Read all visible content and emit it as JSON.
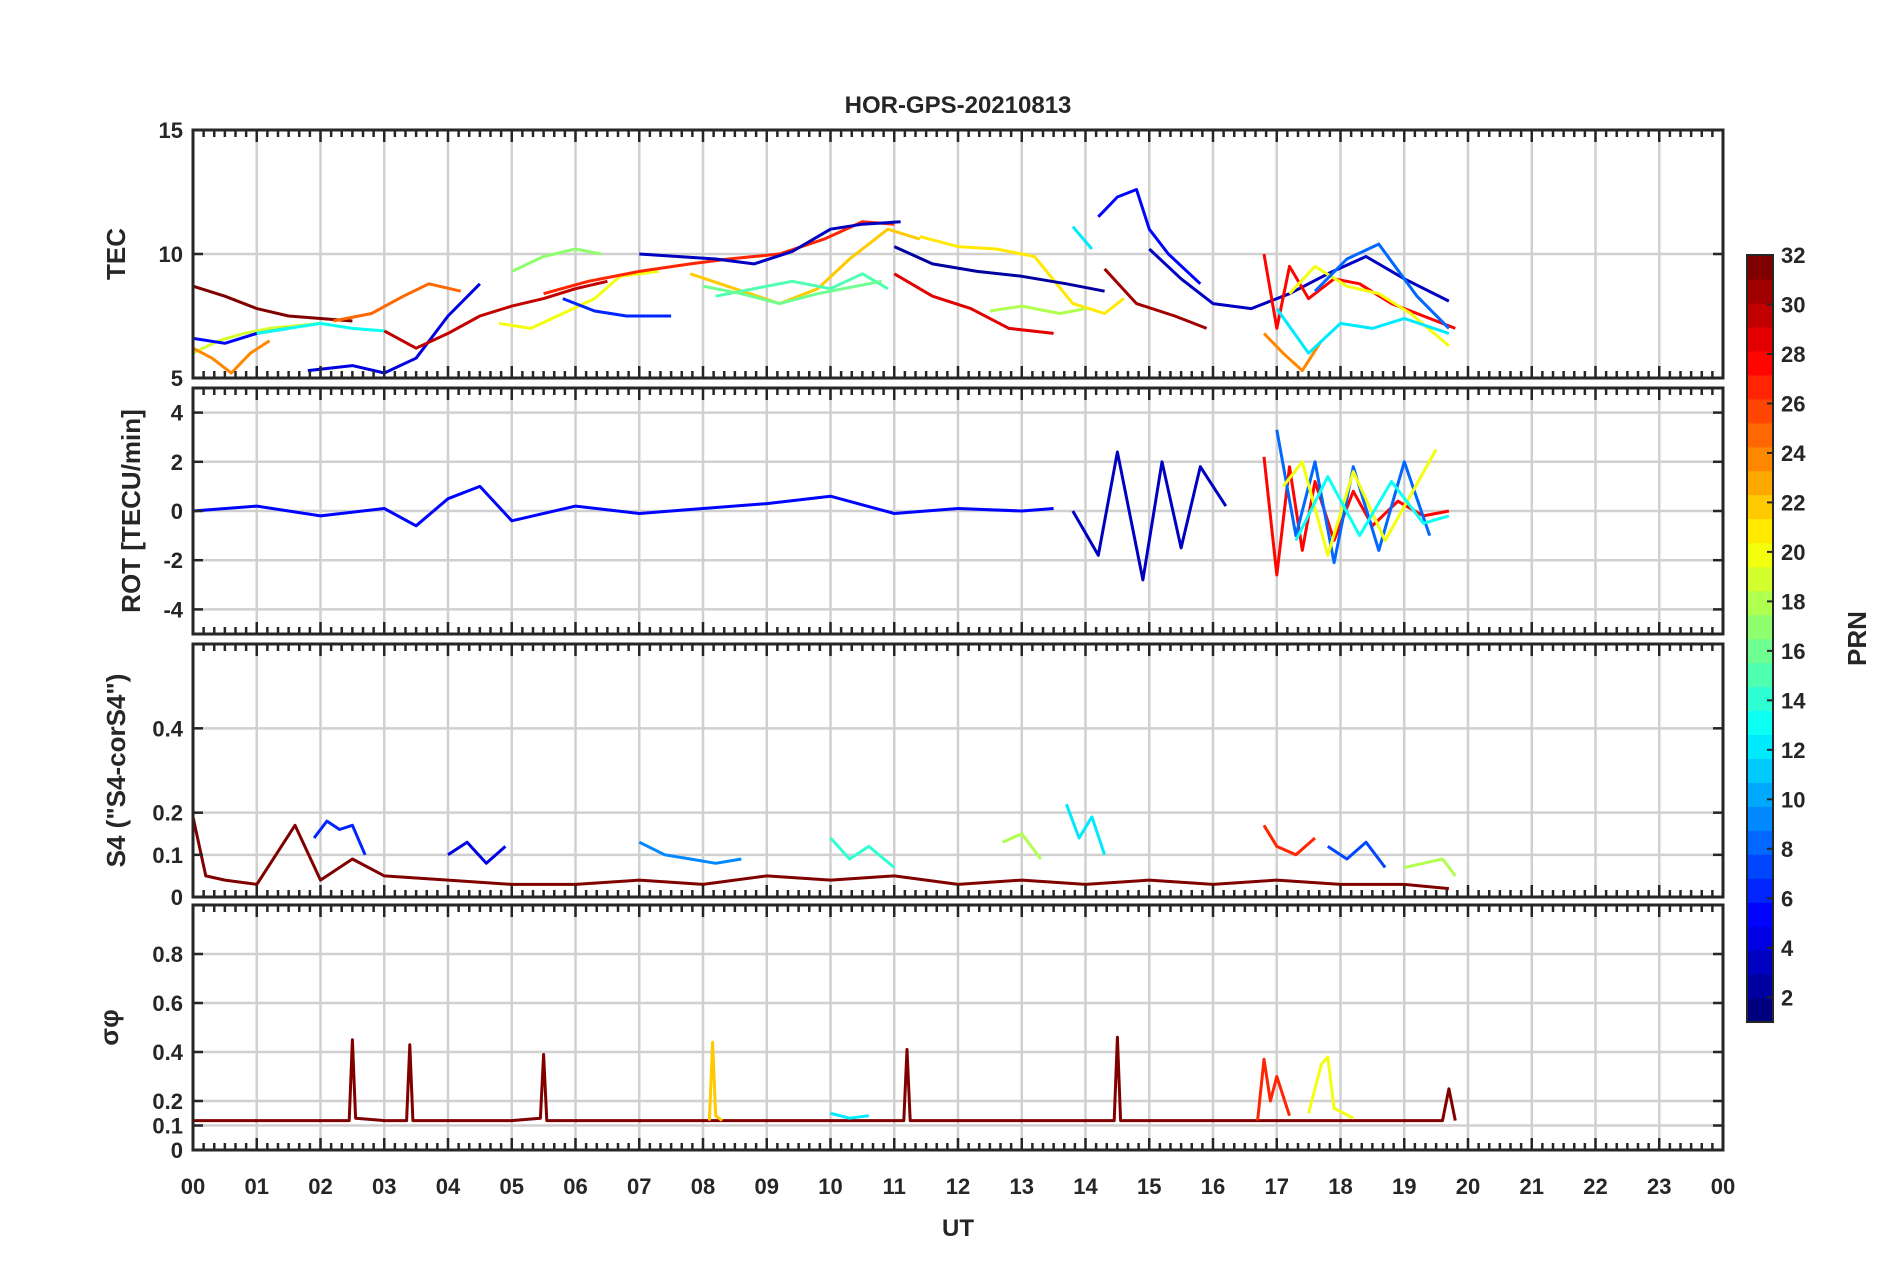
{
  "figure": {
    "title": "HOR-GPS-20210813",
    "xlabel": "UT",
    "x_ticks": [
      "00",
      "01",
      "02",
      "03",
      "04",
      "05",
      "06",
      "07",
      "08",
      "09",
      "10",
      "11",
      "12",
      "13",
      "14",
      "15",
      "16",
      "17",
      "18",
      "19",
      "20",
      "21",
      "22",
      "23",
      "00"
    ],
    "colorbar": {
      "label": "PRN",
      "ticks": [
        "2",
        "4",
        "6",
        "8",
        "10",
        "12",
        "14",
        "16",
        "18",
        "20",
        "22",
        "24",
        "26",
        "28",
        "30",
        "32"
      ],
      "range": [
        1,
        32
      ],
      "colormap": "jet"
    }
  },
  "chart_data": [
    {
      "type": "line",
      "name": "TEC panel",
      "ylabel": "TEC",
      "ylim": [
        5,
        15
      ],
      "yticks": [
        5,
        10,
        15
      ],
      "xlim": [
        0,
        24
      ],
      "grid": true,
      "series": [
        {
          "prn": 32,
          "x": [
            0,
            0.5,
            1,
            1.5,
            2,
            2.5
          ],
          "y": [
            8.7,
            8.3,
            7.8,
            7.5,
            7.4,
            7.3
          ]
        },
        {
          "prn": 19,
          "x": [
            0,
            0.4,
            0.8,
            1.2,
            1.6,
            2.0
          ],
          "y": [
            6.0,
            6.5,
            6.8,
            7.0,
            7.1,
            7.2
          ]
        },
        {
          "prn": 24,
          "x": [
            0,
            0.3,
            0.6,
            0.9,
            1.2
          ],
          "y": [
            6.2,
            5.8,
            5.2,
            6.0,
            6.5
          ]
        },
        {
          "prn": 5,
          "x": [
            0,
            0.5,
            1.0,
            1.5
          ],
          "y": [
            6.6,
            6.4,
            6.8,
            7.0
          ]
        },
        {
          "prn": 13,
          "x": [
            1.0,
            1.5,
            2.0,
            2.5,
            3.0
          ],
          "y": [
            6.8,
            7.0,
            7.2,
            7.0,
            6.9
          ]
        },
        {
          "prn": 4,
          "x": [
            1.8,
            2.5,
            3.0,
            3.5,
            4.0,
            4.5
          ],
          "y": [
            5.3,
            5.5,
            5.2,
            5.8,
            7.5,
            8.8
          ]
        },
        {
          "prn": 30,
          "x": [
            3.0,
            3.5,
            4.0,
            4.5,
            5.0,
            5.5,
            6.0,
            6.5
          ],
          "y": [
            6.9,
            6.2,
            6.8,
            7.5,
            7.9,
            8.2,
            8.6,
            8.9
          ]
        },
        {
          "prn": 25,
          "x": [
            2.2,
            2.8,
            3.3,
            3.7,
            4.2
          ],
          "y": [
            7.3,
            7.6,
            8.3,
            8.8,
            8.5
          ]
        },
        {
          "prn": 20,
          "x": [
            4.8,
            5.3,
            5.8,
            6.3,
            6.7,
            7.3
          ],
          "y": [
            7.2,
            7.0,
            7.6,
            8.2,
            9.1,
            9.3
          ]
        },
        {
          "prn": 17,
          "x": [
            5.0,
            5.5,
            6.0,
            6.4
          ],
          "y": [
            9.3,
            9.9,
            10.2,
            10.0
          ]
        },
        {
          "prn": 6,
          "x": [
            5.8,
            6.3,
            6.8,
            7.5
          ],
          "y": [
            8.2,
            7.7,
            7.5,
            7.5
          ]
        },
        {
          "prn": 27,
          "x": [
            5.5,
            6.2,
            7.0,
            7.8,
            8.4,
            9.2,
            9.9,
            10.5,
            11.0
          ],
          "y": [
            8.4,
            8.9,
            9.3,
            9.6,
            9.8,
            10.0,
            10.6,
            11.3,
            11.2
          ]
        },
        {
          "prn": 3,
          "x": [
            7.0,
            7.6,
            8.2,
            8.8,
            9.4,
            10.0,
            10.5,
            11.1
          ],
          "y": [
            10.0,
            9.9,
            9.8,
            9.6,
            10.1,
            11.0,
            11.2,
            11.3
          ]
        },
        {
          "prn": 22,
          "x": [
            7.8,
            8.5,
            9.2,
            9.8,
            10.3,
            10.9,
            11.4
          ],
          "y": [
            9.2,
            8.6,
            8.0,
            8.6,
            9.8,
            11.0,
            10.6
          ]
        },
        {
          "prn": 15,
          "x": [
            8.2,
            8.8,
            9.4,
            10.0,
            10.5,
            10.9
          ],
          "y": [
            8.3,
            8.6,
            8.9,
            8.6,
            9.2,
            8.6
          ]
        },
        {
          "prn": 16,
          "x": [
            8.0,
            8.6,
            9.2,
            9.8,
            10.2,
            10.8
          ],
          "y": [
            8.7,
            8.4,
            8.0,
            8.4,
            8.6,
            8.9
          ]
        },
        {
          "prn": 29,
          "x": [
            11.0,
            11.6,
            12.2,
            12.8,
            13.5
          ],
          "y": [
            9.2,
            8.3,
            7.8,
            7.0,
            6.8
          ]
        },
        {
          "prn": 21,
          "x": [
            11.4,
            12.0,
            12.6,
            13.2,
            13.8,
            14.3,
            14.6
          ],
          "y": [
            10.7,
            10.3,
            10.2,
            9.9,
            8.0,
            7.6,
            8.2
          ]
        },
        {
          "prn": 2,
          "x": [
            11.0,
            11.6,
            12.3,
            13.0,
            13.7,
            14.3
          ],
          "y": [
            10.3,
            9.6,
            9.3,
            9.1,
            8.8,
            8.5
          ]
        },
        {
          "prn": 18,
          "x": [
            12.5,
            13.0,
            13.6,
            14.0
          ],
          "y": [
            7.7,
            7.9,
            7.6,
            7.8
          ]
        },
        {
          "prn": 12,
          "x": [
            13.8,
            14.1
          ],
          "y": [
            11.1,
            10.2
          ]
        },
        {
          "prn": 5,
          "x": [
            14.2,
            14.5,
            14.8,
            15.0,
            15.3,
            15.8
          ],
          "y": [
            11.5,
            12.3,
            12.6,
            11.0,
            10.0,
            8.8
          ]
        },
        {
          "prn": 31,
          "x": [
            14.3,
            14.8,
            15.4,
            15.9
          ],
          "y": [
            9.4,
            8.0,
            7.5,
            7.0
          ]
        },
        {
          "prn": 3,
          "x": [
            15.0,
            15.5,
            16.0,
            16.6,
            17.2,
            17.8,
            18.4,
            19.0,
            19.7
          ],
          "y": [
            10.2,
            9.0,
            8.0,
            7.8,
            8.4,
            9.2,
            9.9,
            9.0,
            8.1
          ]
        },
        {
          "prn": 28,
          "x": [
            16.8,
            17.0,
            17.2,
            17.5,
            17.9,
            18.3,
            18.8,
            19.3,
            19.8
          ],
          "y": [
            10.0,
            7.0,
            9.5,
            8.2,
            9.0,
            8.8,
            8.0,
            7.5,
            7.0
          ]
        },
        {
          "prn": 24,
          "x": [
            16.8,
            17.1,
            17.4,
            17.7
          ],
          "y": [
            6.8,
            6.0,
            5.3,
            6.5
          ]
        },
        {
          "prn": 20,
          "x": [
            17.2,
            17.6,
            18.1,
            18.6,
            19.1,
            19.7
          ],
          "y": [
            8.4,
            9.5,
            8.7,
            8.4,
            7.6,
            6.3
          ]
        },
        {
          "prn": 12,
          "x": [
            17.0,
            17.5,
            18.0,
            18.5,
            19.0,
            19.7
          ],
          "y": [
            7.8,
            6.0,
            7.2,
            7.0,
            7.4,
            6.8
          ]
        },
        {
          "prn": 8,
          "x": [
            17.6,
            18.1,
            18.6,
            19.2,
            19.7
          ],
          "y": [
            8.5,
            9.8,
            10.4,
            8.3,
            7.0
          ]
        }
      ]
    },
    {
      "type": "line",
      "name": "ROT panel",
      "ylabel": "ROT [TECU/min]",
      "ylim": [
        -5,
        5
      ],
      "yticks": [
        -4,
        -2,
        0,
        2,
        4
      ],
      "xlim": [
        0,
        24
      ],
      "grid": true,
      "series": [
        {
          "prn": 5,
          "x": [
            0,
            1,
            2,
            3,
            3.5,
            4,
            4.5,
            5,
            6,
            7,
            8,
            9,
            10,
            11,
            12,
            13,
            13.5
          ],
          "y": [
            0,
            0.2,
            -0.2,
            0.1,
            -0.6,
            0.5,
            1.0,
            -0.4,
            0.2,
            -0.1,
            0.1,
            0.3,
            0.6,
            -0.1,
            0.1,
            0,
            0.1
          ]
        },
        {
          "prn": 3,
          "x": [
            13.8,
            14.2,
            14.5,
            14.9,
            15.2,
            15.5,
            15.8,
            16.2
          ],
          "y": [
            0,
            -1.8,
            2.4,
            -2.8,
            2.0,
            -1.5,
            1.8,
            0.2
          ]
        },
        {
          "prn": 28,
          "x": [
            16.8,
            17.0,
            17.2,
            17.4,
            17.6,
            17.9,
            18.2,
            18.5,
            18.9,
            19.3,
            19.7
          ],
          "y": [
            2.2,
            -2.6,
            1.8,
            -1.6,
            1.2,
            -1.2,
            0.8,
            -0.6,
            0.4,
            -0.2,
            0
          ]
        },
        {
          "prn": 8,
          "x": [
            17.0,
            17.3,
            17.6,
            17.9,
            18.2,
            18.6,
            19.0,
            19.4
          ],
          "y": [
            3.3,
            -1.0,
            2.0,
            -2.1,
            1.8,
            -1.6,
            2.0,
            -1.0
          ]
        },
        {
          "prn": 20,
          "x": [
            17.1,
            17.4,
            17.8,
            18.2,
            18.7,
            19.2,
            19.5
          ],
          "y": [
            1.0,
            2.0,
            -1.8,
            1.6,
            -1.2,
            1.1,
            2.5
          ]
        },
        {
          "prn": 13,
          "x": [
            17.3,
            17.8,
            18.3,
            18.8,
            19.3,
            19.7
          ],
          "y": [
            -1.2,
            1.4,
            -1.0,
            1.2,
            -0.5,
            -0.2
          ]
        }
      ]
    },
    {
      "type": "line",
      "name": "S4 panel",
      "ylabel": "S4 (\"S4-corS4\")",
      "ylim": [
        0,
        0.6
      ],
      "yticks": [
        0,
        0.1,
        0.2,
        0.4
      ],
      "xlim": [
        0,
        24
      ],
      "grid": true,
      "series": [
        {
          "prn": 32,
          "x": [
            0,
            0.2,
            0.5,
            1.0,
            1.6,
            2.0,
            2.5,
            3.0,
            4.0,
            5.0,
            6.0,
            7.0,
            8.0,
            9.0,
            10.0,
            11.0,
            12.0,
            13.0,
            14.0,
            15.0,
            16.0,
            17.0,
            18.0,
            19.0,
            19.7
          ],
          "y": [
            0.19,
            0.05,
            0.04,
            0.03,
            0.17,
            0.04,
            0.09,
            0.05,
            0.04,
            0.03,
            0.03,
            0.04,
            0.03,
            0.05,
            0.04,
            0.05,
            0.03,
            0.04,
            0.03,
            0.04,
            0.03,
            0.04,
            0.03,
            0.03,
            0.02
          ]
        },
        {
          "prn": 6,
          "x": [
            1.9,
            2.1,
            2.3,
            2.5,
            2.7
          ],
          "y": [
            0.14,
            0.18,
            0.16,
            0.17,
            0.1
          ]
        },
        {
          "prn": 4,
          "x": [
            4.0,
            4.3,
            4.6,
            4.9
          ],
          "y": [
            0.1,
            0.13,
            0.08,
            0.12
          ]
        },
        {
          "prn": 9,
          "x": [
            7.0,
            7.4,
            7.8,
            8.2,
            8.6
          ],
          "y": [
            0.13,
            0.1,
            0.09,
            0.08,
            0.09
          ]
        },
        {
          "prn": 14,
          "x": [
            10.0,
            10.3,
            10.6,
            11.0
          ],
          "y": [
            0.14,
            0.09,
            0.12,
            0.07
          ]
        },
        {
          "prn": 18,
          "x": [
            12.7,
            13.0,
            13.3
          ],
          "y": [
            0.13,
            0.15,
            0.09
          ]
        },
        {
          "prn": 12,
          "x": [
            13.7,
            13.9,
            14.1,
            14.3
          ],
          "y": [
            0.22,
            0.14,
            0.19,
            0.1
          ]
        },
        {
          "prn": 27,
          "x": [
            16.8,
            17.0,
            17.3,
            17.6
          ],
          "y": [
            0.17,
            0.12,
            0.1,
            0.14
          ]
        },
        {
          "prn": 7,
          "x": [
            17.8,
            18.1,
            18.4,
            18.7
          ],
          "y": [
            0.12,
            0.09,
            0.13,
            0.07
          ]
        },
        {
          "prn": 18,
          "x": [
            19.0,
            19.3,
            19.6,
            19.8
          ],
          "y": [
            0.07,
            0.08,
            0.09,
            0.05
          ]
        }
      ]
    },
    {
      "type": "line",
      "name": "Sigma phi panel",
      "ylabel": "σφ",
      "ylim": [
        0,
        1
      ],
      "yticks": [
        0,
        0.1,
        0.2,
        0.4,
        0.6,
        0.8
      ],
      "xlim": [
        0,
        24
      ],
      "grid": true,
      "series": [
        {
          "prn": 32,
          "x": [
            0,
            1,
            2,
            2.45,
            2.5,
            2.55,
            3,
            3.35,
            3.4,
            3.45,
            4,
            5,
            5.45,
            5.5,
            5.55,
            6,
            7,
            8,
            9,
            10,
            11,
            11.15,
            11.2,
            11.25,
            12,
            13,
            14,
            14.45,
            14.5,
            14.55,
            15,
            16,
            17,
            18,
            19,
            19.6,
            19.7,
            19.8
          ],
          "y": [
            0.12,
            0.12,
            0.12,
            0.12,
            0.45,
            0.13,
            0.12,
            0.12,
            0.43,
            0.12,
            0.12,
            0.12,
            0.13,
            0.39,
            0.12,
            0.12,
            0.12,
            0.12,
            0.12,
            0.12,
            0.12,
            0.12,
            0.41,
            0.12,
            0.12,
            0.12,
            0.12,
            0.12,
            0.46,
            0.12,
            0.12,
            0.12,
            0.12,
            0.12,
            0.12,
            0.12,
            0.25,
            0.12
          ]
        },
        {
          "prn": 22,
          "x": [
            8.1,
            8.15,
            8.2,
            8.3
          ],
          "y": [
            0.12,
            0.44,
            0.14,
            0.12
          ]
        },
        {
          "prn": 27,
          "x": [
            16.7,
            16.8,
            16.9,
            17.0,
            17.2
          ],
          "y": [
            0.12,
            0.37,
            0.2,
            0.3,
            0.14
          ]
        },
        {
          "prn": 20,
          "x": [
            17.5,
            17.7,
            17.8,
            17.9,
            18.2
          ],
          "y": [
            0.15,
            0.35,
            0.38,
            0.17,
            0.13
          ]
        },
        {
          "prn": 12,
          "x": [
            10.0,
            10.3,
            10.6
          ],
          "y": [
            0.15,
            0.13,
            0.14
          ]
        }
      ]
    }
  ]
}
